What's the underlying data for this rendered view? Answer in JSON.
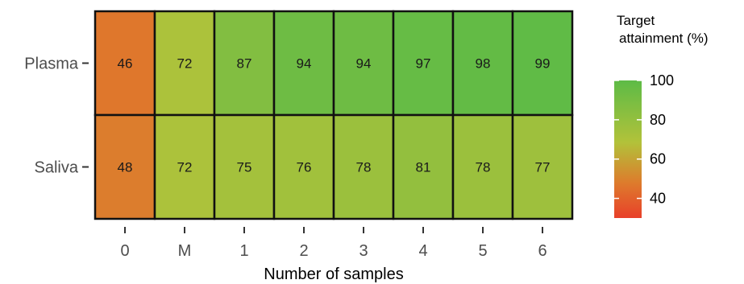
{
  "chart_data": {
    "type": "heatmap",
    "x_categories": [
      "0",
      "M",
      "1",
      "2",
      "3",
      "4",
      "5",
      "6"
    ],
    "y_categories": [
      "Plasma",
      "Saliva"
    ],
    "values": [
      [
        46,
        72,
        87,
        94,
        94,
        97,
        98,
        99
      ],
      [
        48,
        72,
        75,
        76,
        78,
        81,
        78,
        77
      ]
    ],
    "xlabel": "Number of samples",
    "ylabel": "",
    "title": "",
    "legend": {
      "title_lines": [
        "Target",
        "attainment (%)"
      ],
      "ticks": [
        "100",
        "80",
        "60",
        "40"
      ],
      "range": [
        30,
        100
      ],
      "placement": "right"
    },
    "color_scale": {
      "low": "#e8402a",
      "mid": "#b2c23a",
      "high": "#5dbb46"
    }
  }
}
